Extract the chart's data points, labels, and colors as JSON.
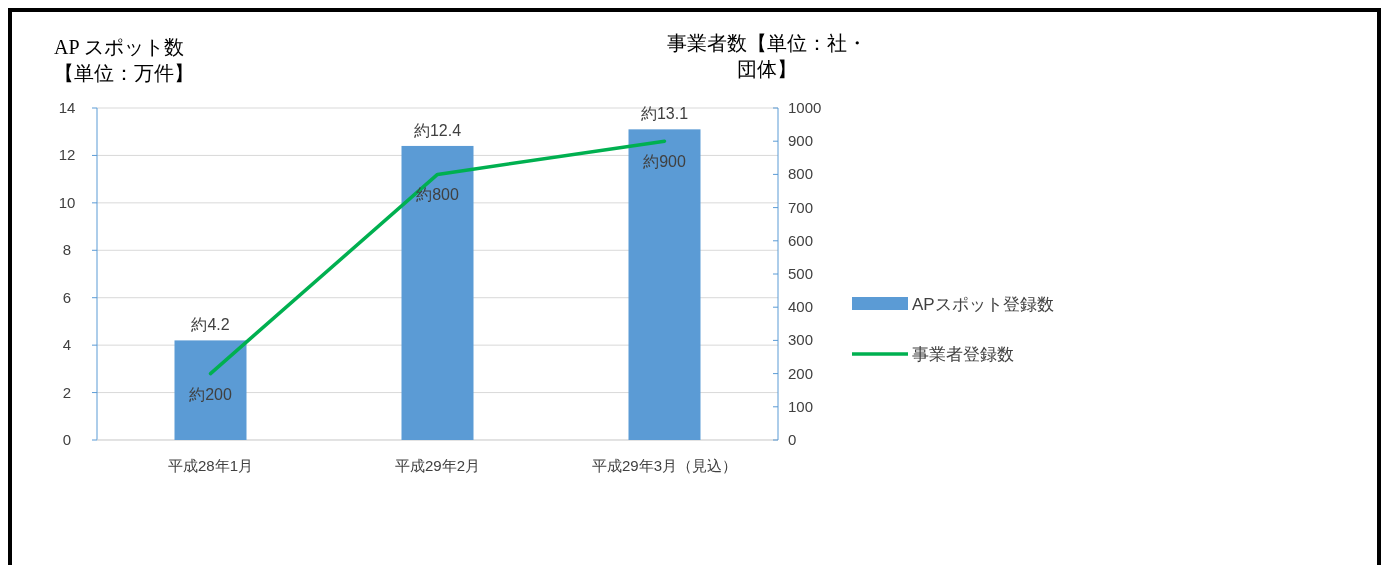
{
  "chart_data": {
    "type": "bar",
    "categories": [
      "平成28年1月",
      "平成29年2月",
      "平成29年3月（見込）"
    ],
    "ylabel": "AP スポット数【単位：万件】",
    "y2label": "事業者数【単位：社・団体】",
    "ylim": [
      0,
      14
    ],
    "yticks": [
      0,
      2,
      4,
      6,
      8,
      10,
      12,
      14
    ],
    "y2lim": [
      0,
      1000
    ],
    "y2ticks": [
      0,
      100,
      200,
      300,
      400,
      500,
      600,
      700,
      800,
      900,
      1000
    ],
    "grid": "y",
    "legend": "right",
    "series": [
      {
        "name": "APスポット登録数",
        "color": "#5b9bd5",
        "values": [
          4.2,
          12.4,
          13.1
        ],
        "value_labels": [
          "約4.2",
          "約12.4",
          "約13.1"
        ]
      },
      {
        "name": "事業者登録数",
        "type": "line",
        "axis": "y2",
        "color": "#00b050",
        "values": [
          200,
          800,
          900
        ],
        "value_labels": [
          "約200",
          "約800",
          "約900"
        ]
      }
    ]
  }
}
